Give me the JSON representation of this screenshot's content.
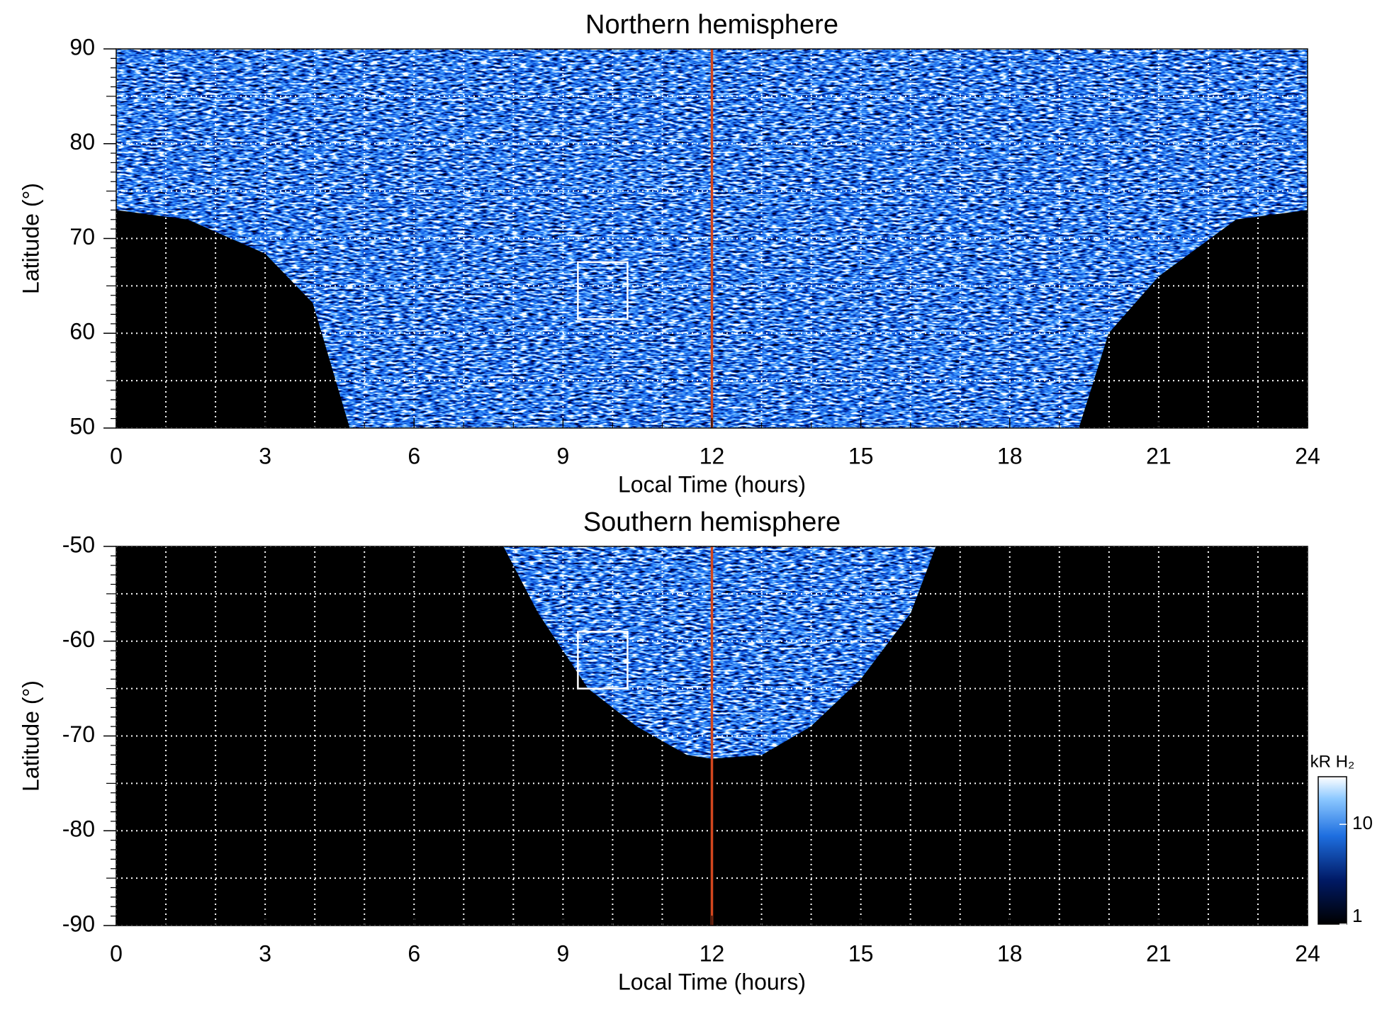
{
  "chart_data": [
    {
      "type": "heatmap",
      "title": "Northern hemisphere",
      "xlabel": "Local Time (hours)",
      "ylabel": "Latitude (°)",
      "xlim": [
        0,
        24
      ],
      "xticks": [
        0,
        3,
        6,
        9,
        12,
        15,
        18,
        21,
        24
      ],
      "ylim": [
        50,
        90
      ],
      "yticks": [
        50,
        60,
        70,
        80,
        90
      ],
      "grid": true,
      "vline": {
        "x": 12,
        "color": "#d2461e"
      },
      "box": {
        "x": [
          9.3,
          10.3
        ],
        "y": [
          61.5,
          67.5
        ]
      }
    },
    {
      "type": "heatmap",
      "title": "Southern hemisphere",
      "xlabel": "Local Time (hours)",
      "ylabel": "Latitude (°)",
      "xlim": [
        0,
        24
      ],
      "xticks": [
        0,
        3,
        6,
        9,
        12,
        15,
        18,
        21,
        24
      ],
      "ylim": [
        -90,
        -50
      ],
      "yticks": [
        -90,
        -80,
        -70,
        -60,
        -50
      ],
      "grid": true,
      "vline": {
        "x": 12,
        "color": "#d2461e"
      },
      "box": {
        "x": [
          9.3,
          10.3
        ],
        "y": [
          -65,
          -59
        ]
      },
      "colorbar": {
        "label": "kR H₂",
        "log": true,
        "lim": [
          1,
          30
        ],
        "ticks": [
          1,
          10
        ]
      }
    }
  ]
}
